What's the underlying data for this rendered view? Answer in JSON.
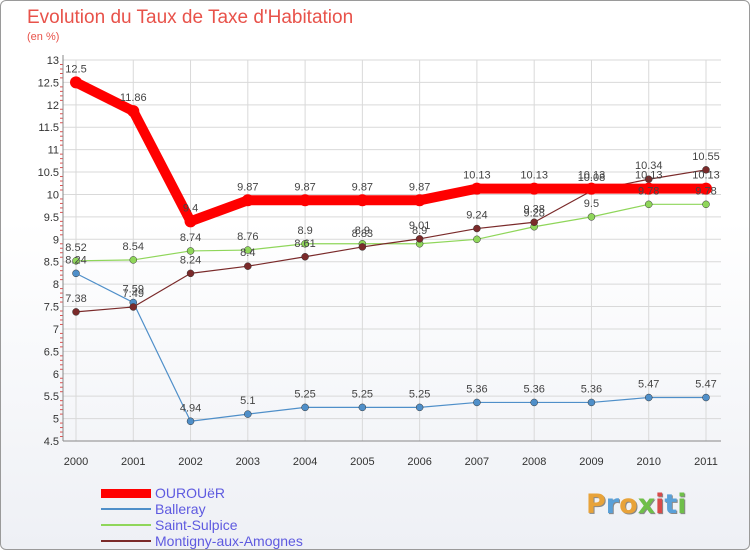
{
  "chart_data": {
    "type": "line",
    "title": "Evolution du Taux de Taxe d'Habitation",
    "subtitle": "(en %)",
    "xlabel": "",
    "ylabel": "",
    "categories": [
      "2000",
      "2001",
      "2002",
      "2003",
      "2004",
      "2005",
      "2006",
      "2007",
      "2008",
      "2009",
      "2010",
      "2011"
    ],
    "ylim": [
      4.5,
      13
    ],
    "yticks": [
      "4.5",
      "5",
      "5.5",
      "6",
      "6.5",
      "7",
      "7.5",
      "8",
      "8.5",
      "9",
      "9.5",
      "10",
      "10.5",
      "11",
      "11.5",
      "12",
      "12.5",
      "13"
    ],
    "grid": true,
    "legend_position": "bottom-left",
    "series": [
      {
        "name": "OUROUëR",
        "color": "#ff0000",
        "values": [
          12.5,
          11.86,
          9.4,
          9.87,
          9.87,
          9.87,
          9.87,
          10.13,
          10.13,
          10.13,
          10.13,
          10.13
        ],
        "labels": [
          "12.5",
          "11.86",
          "9.4",
          "9.87",
          "9.87",
          "9.87",
          "9.87",
          "10.13",
          "10.13",
          "10.13",
          "10.13",
          "10.13"
        ]
      },
      {
        "name": "Balleray",
        "color": "#4f8fc9",
        "values": [
          8.24,
          7.59,
          4.94,
          5.1,
          5.25,
          5.25,
          5.25,
          5.36,
          5.36,
          5.36,
          5.47,
          5.47
        ],
        "labels": [
          "8.24",
          "7.59",
          "4.94",
          "5.1",
          "5.25",
          "5.25",
          "5.25",
          "5.36",
          "5.36",
          "5.36",
          "5.47",
          "5.47"
        ]
      },
      {
        "name": "Saint-Sulpice",
        "color": "#8fd65a",
        "values": [
          8.52,
          8.54,
          8.74,
          8.76,
          8.9,
          8.9,
          8.9,
          9.0,
          9.28,
          9.5,
          9.78,
          9.78
        ],
        "labels": [
          "8.52",
          "8.54",
          "8.74",
          "8.76",
          "8.9",
          "8.9",
          "8.9",
          "",
          "9.28",
          "9.5",
          "9.78",
          "9.78"
        ]
      },
      {
        "name": "Montigny-aux-Amognes",
        "color": "#7a2a2a",
        "values": [
          7.38,
          7.49,
          8.24,
          8.4,
          8.61,
          8.83,
          9.01,
          9.24,
          9.38,
          10.08,
          10.34,
          10.55
        ],
        "labels": [
          "7.38",
          "7.49",
          "8.24",
          "8.4",
          "8.61",
          "8.83",
          "9.01",
          "9.24",
          "9.38",
          "10.08",
          "10.34",
          "10.55"
        ]
      }
    ]
  },
  "brand": {
    "logo_letters": [
      "P",
      "r",
      "o",
      "x",
      "i",
      "t",
      "i"
    ],
    "logo_colors": [
      "#e8a33a",
      "#5aa0d8",
      "#e8a33a",
      "#6fbf4a",
      "#d84a4a",
      "#5aa0d8",
      "#6fbf4a"
    ]
  }
}
